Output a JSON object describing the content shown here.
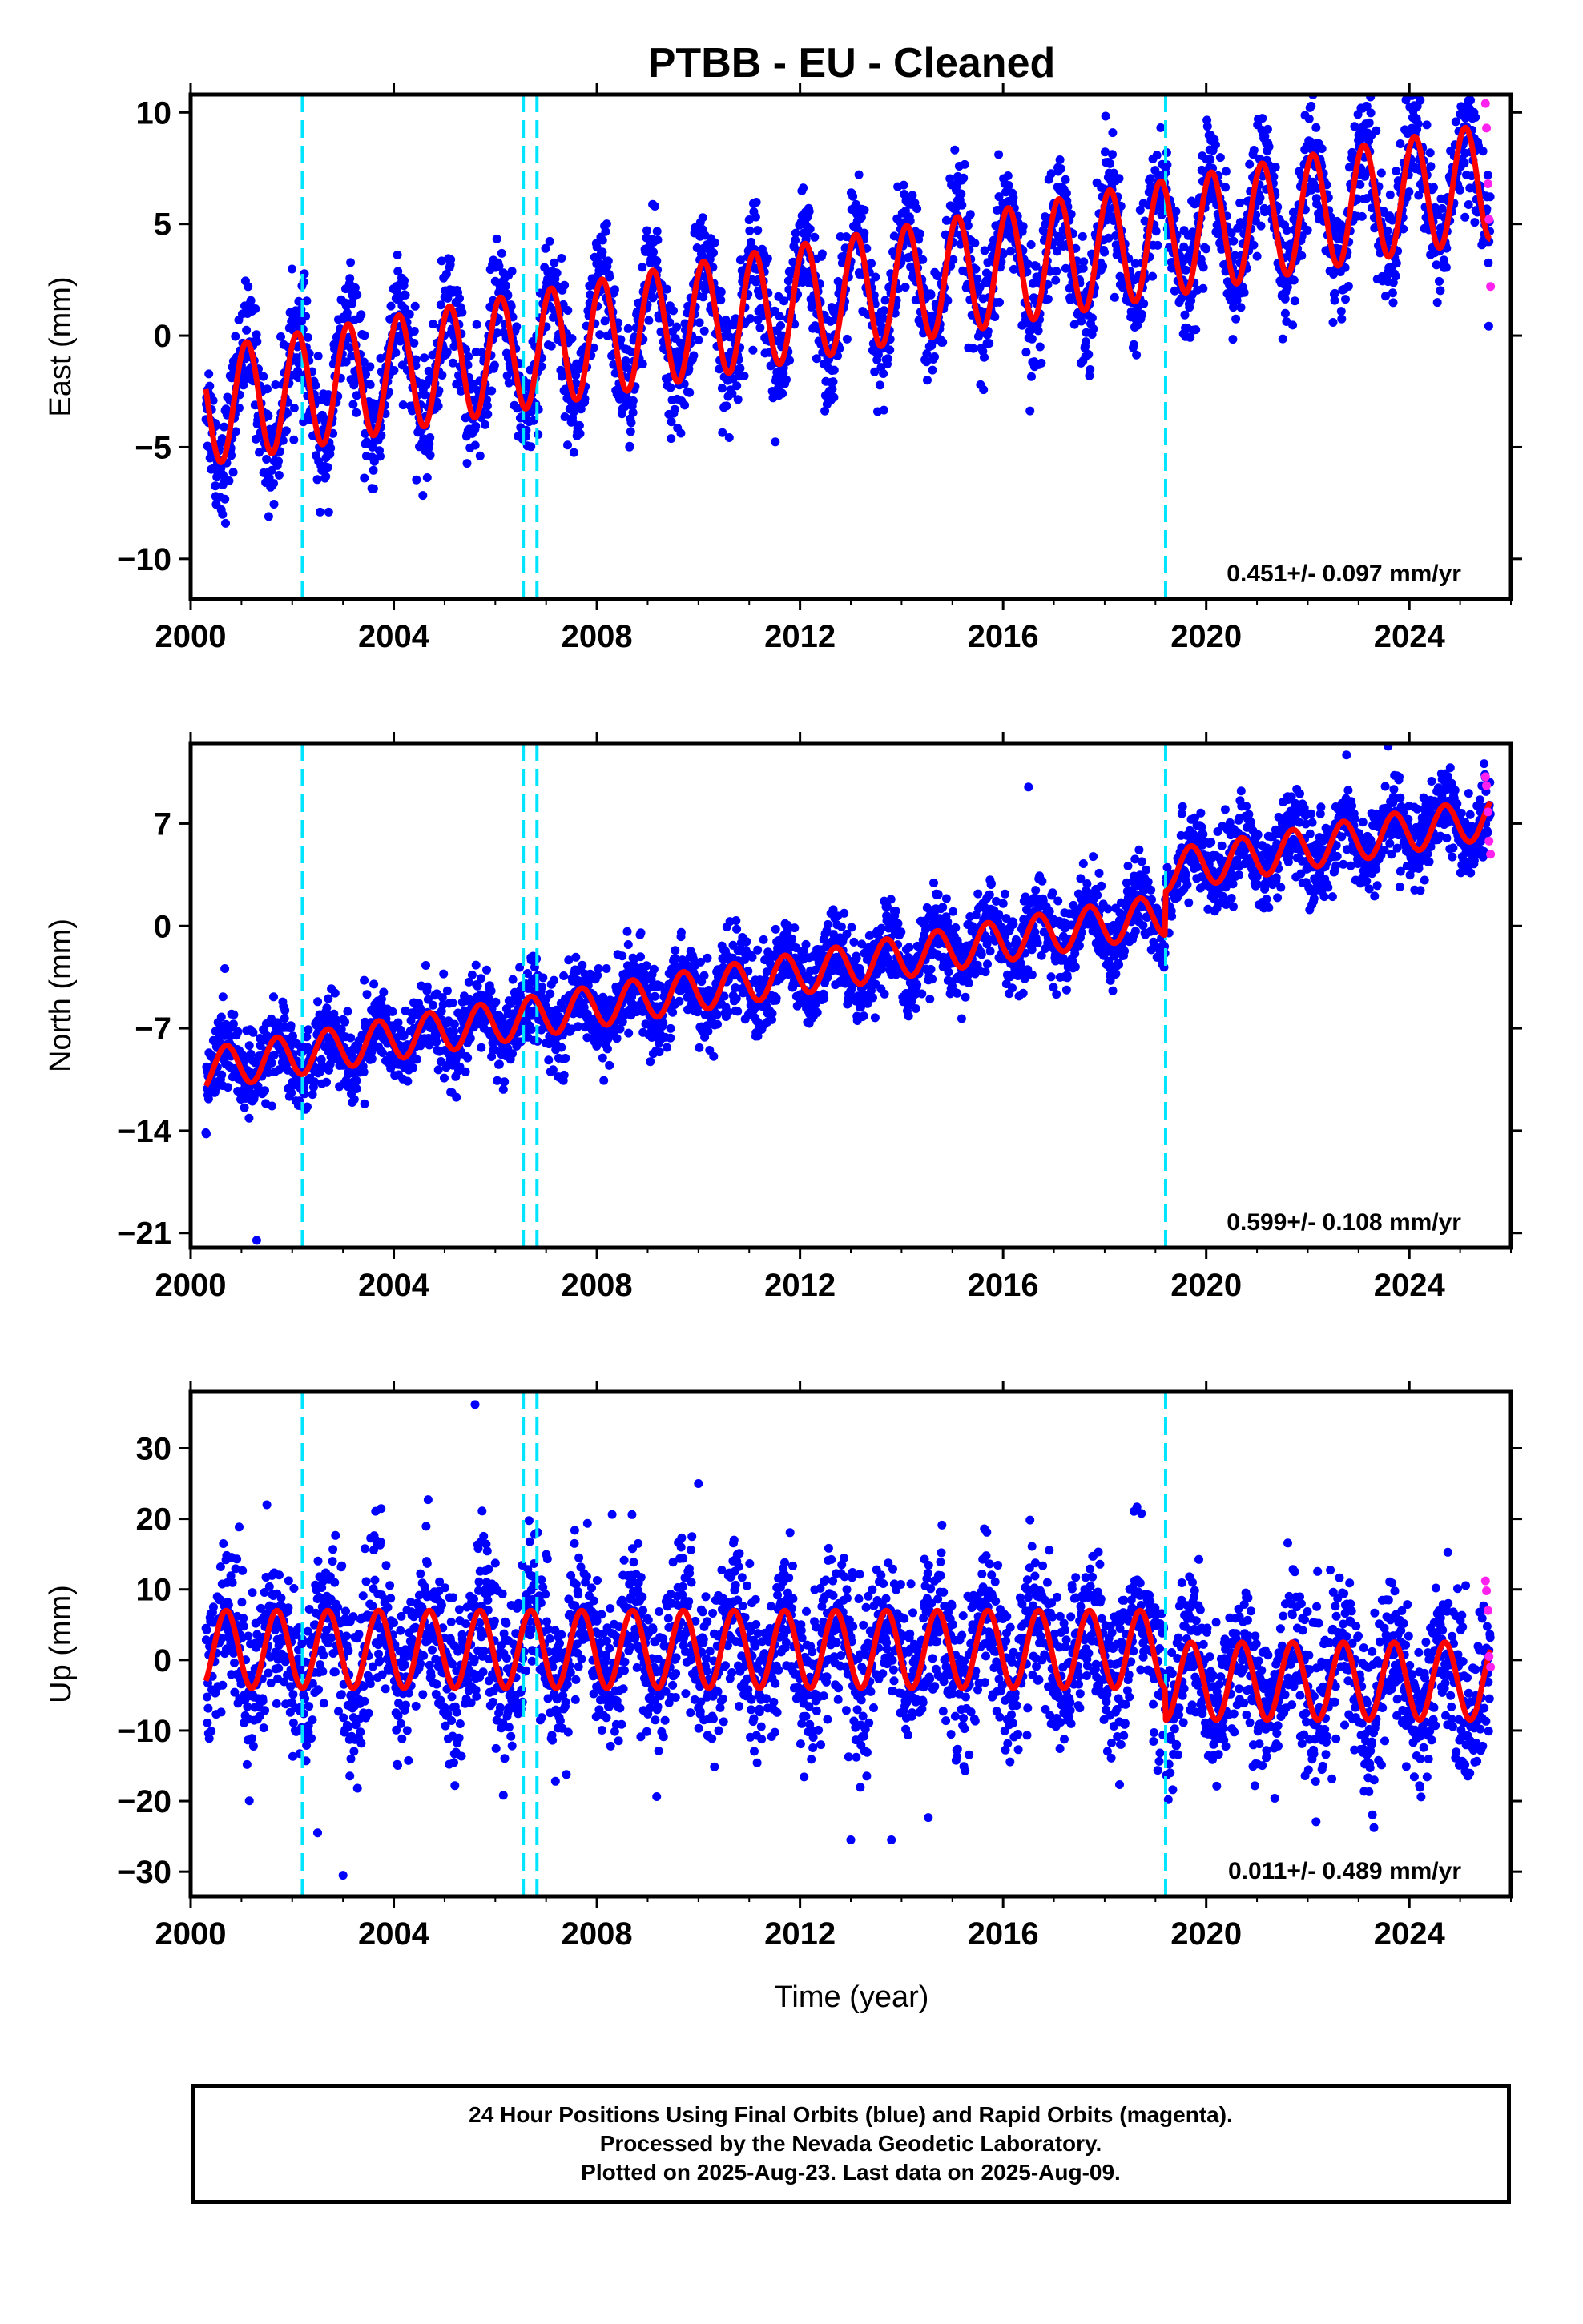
{
  "chart_data": [
    {
      "type": "scatter",
      "title": "PTBB  - EU - Cleaned",
      "ylabel": "East (mm)",
      "xlabel": "",
      "xlim": [
        2000,
        2026
      ],
      "ylim": [
        -11.8,
        10.8
      ],
      "xticks": [
        2000,
        2004,
        2008,
        2012,
        2016,
        2020,
        2024
      ],
      "xtick_labels": [
        "2000",
        "2004",
        "2008",
        "2012",
        "2016",
        "2020",
        "2024"
      ],
      "yticks": [
        10,
        5,
        0,
        -5,
        -10
      ],
      "ytick_labels": [
        "10",
        "5",
        "0",
        "−5",
        "−10"
      ],
      "velocity_label": "0.451+/- 0.097 mm/yr",
      "equipment_change_epochs": [
        2002.2,
        2006.55,
        2006.82,
        2019.2
      ],
      "model": {
        "start": 2000.3,
        "end": 2025.6,
        "base": -3.2,
        "trend": 0.4,
        "amplitude": 2.6,
        "phase": 0.15
      },
      "scatter_sigma": 1.3,
      "series": [
        {
          "name": "Final Orbits",
          "color": "#0000ff",
          "marker": "dot"
        },
        {
          "name": "Rapid Orbits",
          "color": "#ff22ee",
          "marker": "dot",
          "x": [
            2025.5,
            2025.52,
            2025.55,
            2025.57,
            2025.6
          ],
          "y": [
            10.4,
            9.3,
            6.8,
            5.2,
            2.2
          ]
        },
        {
          "name": "Model",
          "color": "#ff0000",
          "marker": "line"
        }
      ],
      "grid": false
    },
    {
      "type": "scatter",
      "title": "",
      "ylabel": "North (mm)",
      "xlabel": "",
      "xlim": [
        2000,
        2026
      ],
      "ylim": [
        -22,
        12.5
      ],
      "xticks": [
        2000,
        2004,
        2008,
        2012,
        2016,
        2020,
        2024
      ],
      "xtick_labels": [
        "2000",
        "2004",
        "2008",
        "2012",
        "2016",
        "2020",
        "2024"
      ],
      "yticks": [
        7,
        0,
        -7,
        -14,
        -21
      ],
      "ytick_labels": [
        "7",
        "0",
        "−7",
        "−14",
        "−21"
      ],
      "velocity_label": "0.599+/- 0.108 mm/yr",
      "equipment_change_epochs": [
        2002.2,
        2006.55,
        2006.82,
        2019.2
      ],
      "model": {
        "start": 2000.3,
        "end": 2025.6,
        "base": -9.8,
        "trend": 0.56,
        "amplitude": 1.4,
        "phase": 0.55,
        "offset_epoch": 2019.2,
        "offset": 3.0
      },
      "scatter_sigma": 1.4,
      "outliers": {
        "x": [
          2001.3,
          2016.5
        ],
        "y": [
          -21.5,
          9.5
        ]
      },
      "series": [
        {
          "name": "Final Orbits",
          "color": "#0000ff",
          "marker": "dot"
        },
        {
          "name": "Rapid Orbits",
          "color": "#ff22ee",
          "marker": "dot",
          "x": [
            2025.5,
            2025.52,
            2025.55,
            2025.57,
            2025.6
          ],
          "y": [
            10.2,
            9.6,
            7.8,
            5.8,
            4.9
          ]
        },
        {
          "name": "Model",
          "color": "#ff0000",
          "marker": "line"
        }
      ],
      "grid": false
    },
    {
      "type": "scatter",
      "title": "",
      "ylabel": "Up (mm)",
      "xlabel": "Time (year)",
      "xlim": [
        2000,
        2026
      ],
      "ylim": [
        -33.5,
        38
      ],
      "xticks": [
        2000,
        2004,
        2008,
        2012,
        2016,
        2020,
        2024
      ],
      "xtick_labels": [
        "2000",
        "2004",
        "2008",
        "2012",
        "2016",
        "2020",
        "2024"
      ],
      "yticks": [
        30,
        20,
        10,
        0,
        -10,
        -20,
        -30
      ],
      "ytick_labels": [
        "30",
        "20",
        "10",
        "0",
        "−10",
        "−20",
        "−30"
      ],
      "velocity_label": "0.011+/- 0.489 mm/yr",
      "equipment_change_epochs": [
        2002.2,
        2006.55,
        2006.82,
        2019.2
      ],
      "model": {
        "start": 2000.3,
        "end": 2025.6,
        "base": 1.5,
        "trend": 0.0,
        "amplitude": 5.5,
        "phase": 0.55,
        "offset_epoch": 2019.2,
        "offset": -4.5
      },
      "scatter_sigma": 5.5,
      "outliers": {
        "x": [
          2005.6,
          2003.0,
          2002.5,
          2013.0,
          2013.8,
          2010.0,
          2001.5
        ],
        "y": [
          36.2,
          -30.5,
          -24.5,
          -25.5,
          -25.5,
          25.0,
          22.0
        ]
      },
      "series": [
        {
          "name": "Final Orbits",
          "color": "#0000ff",
          "marker": "dot"
        },
        {
          "name": "Rapid Orbits",
          "color": "#ff22ee",
          "marker": "dot",
          "x": [
            2025.5,
            2025.52,
            2025.55,
            2025.57,
            2025.6
          ],
          "y": [
            11.2,
            9.8,
            7.0,
            0.5,
            -1.0
          ]
        },
        {
          "name": "Model",
          "color": "#ff0000",
          "marker": "line"
        }
      ],
      "grid": false
    }
  ],
  "colors": {
    "final_orbits": "#0000ff",
    "rapid_orbits": "#ff22ee",
    "model": "#ff0000",
    "equipment_change": "#00e5ff"
  },
  "footer": {
    "line1": "24 Hour Positions Using Final Orbits (blue) and Rapid Orbits (magenta).",
    "line2": "Processed by the Nevada Geodetic Laboratory.",
    "line3": "Plotted on 2025-Aug-23. Last data on 2025-Aug-09."
  }
}
